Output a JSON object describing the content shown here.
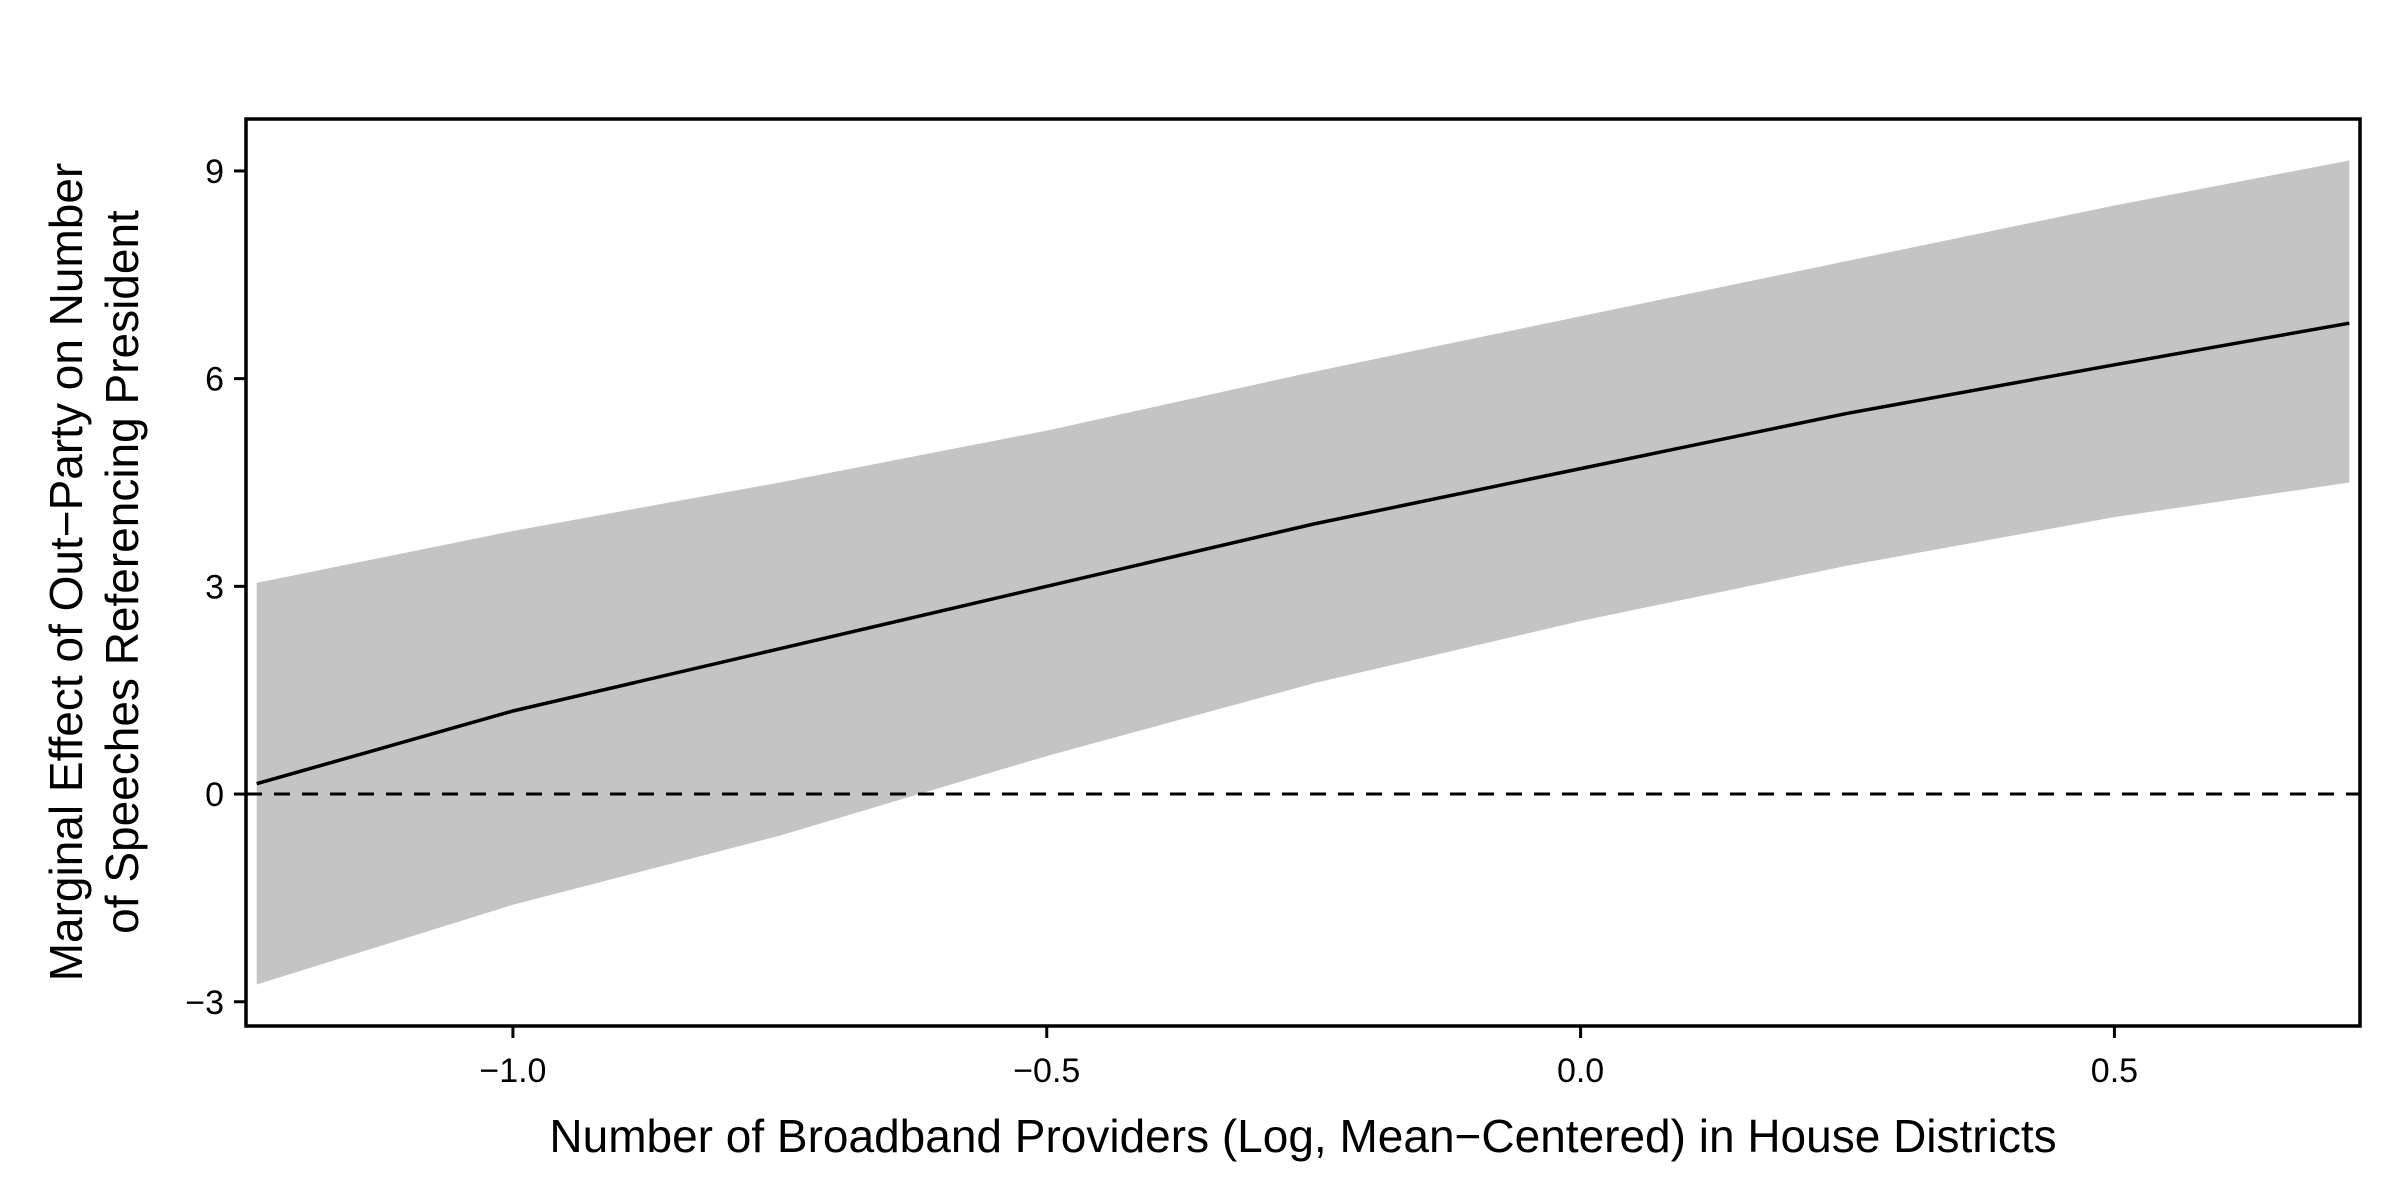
{
  "chart_data": {
    "type": "line",
    "title": "",
    "xlabel": "Number of Broadband Providers (Log, Mean−Centered) in House Districts",
    "ylabel_lines": [
      "Marginal Effect of Out−Party on Number",
      "of Speeches Referencing President"
    ],
    "xlim": [
      -1.25,
      0.73
    ],
    "ylim": [
      -3.35,
      9.75
    ],
    "xticks": [
      {
        "value": -1.0,
        "label": "−1.0"
      },
      {
        "value": -0.5,
        "label": "−0.5"
      },
      {
        "value": 0.0,
        "label": "0.0"
      },
      {
        "value": 0.5,
        "label": "0.5"
      }
    ],
    "yticks": [
      {
        "value": -3,
        "label": "−3"
      },
      {
        "value": 0,
        "label": "0"
      },
      {
        "value": 3,
        "label": "3"
      },
      {
        "value": 6,
        "label": "6"
      },
      {
        "value": 9,
        "label": "9"
      }
    ],
    "x": [
      -1.24,
      -1.0,
      -0.75,
      -0.5,
      -0.25,
      0.0,
      0.25,
      0.5,
      0.72
    ],
    "estimate": [
      0.15,
      1.2,
      2.1,
      3.0,
      3.9,
      4.7,
      5.5,
      6.2,
      6.8
    ],
    "ci_lower": [
      -2.75,
      -1.6,
      -0.6,
      0.55,
      1.6,
      2.5,
      3.3,
      4.0,
      4.5
    ],
    "ci_upper": [
      3.05,
      3.8,
      4.5,
      5.25,
      6.1,
      6.9,
      7.7,
      8.5,
      9.15
    ],
    "reference_line": 0,
    "grid": false,
    "legend": false,
    "colors": {
      "band": "#c4c4c4",
      "line": "#000000",
      "reference": "#000000",
      "frame": "#000000"
    }
  }
}
